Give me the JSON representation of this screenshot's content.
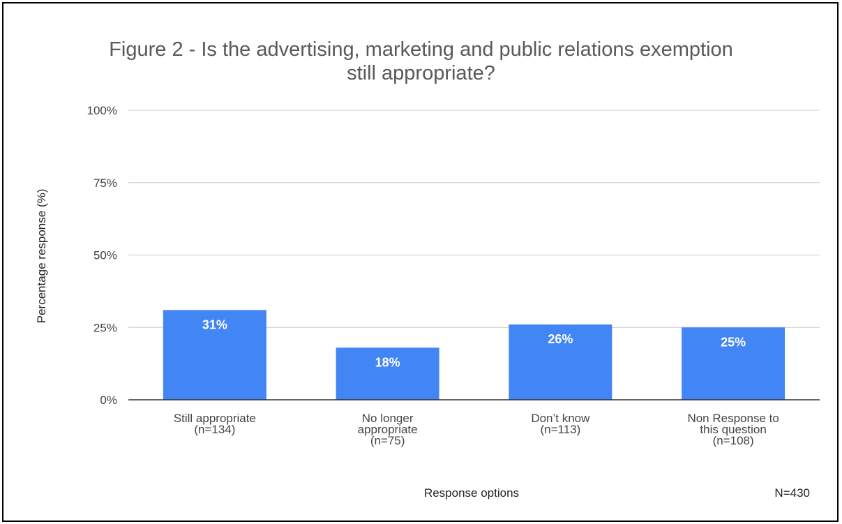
{
  "chart_data": {
    "type": "bar",
    "title_lines": [
      "Figure 2 - Is the advertising, marketing and public relations exemption",
      "still appropriate?"
    ],
    "categories": [
      [
        "Still appropriate",
        "(n=134)"
      ],
      [
        "No longer",
        "appropriate",
        "(n=75)"
      ],
      [
        "Don’t know",
        "(n=113)"
      ],
      [
        "Non Response to",
        "this question",
        "(n=108)"
      ]
    ],
    "values": [
      31,
      18,
      26,
      25
    ],
    "data_labels": [
      "31%",
      "18%",
      "26%",
      "25%"
    ],
    "xlabel": "Response options",
    "ylabel": "Percentage response (%)",
    "ylim": [
      0,
      100
    ],
    "yticks": [
      0,
      25,
      50,
      75,
      100
    ],
    "ytick_labels": [
      "0%",
      "25%",
      "50%",
      "75%",
      "100%"
    ],
    "grid": true,
    "bar_color": "#4285f4",
    "note": "N=430"
  }
}
